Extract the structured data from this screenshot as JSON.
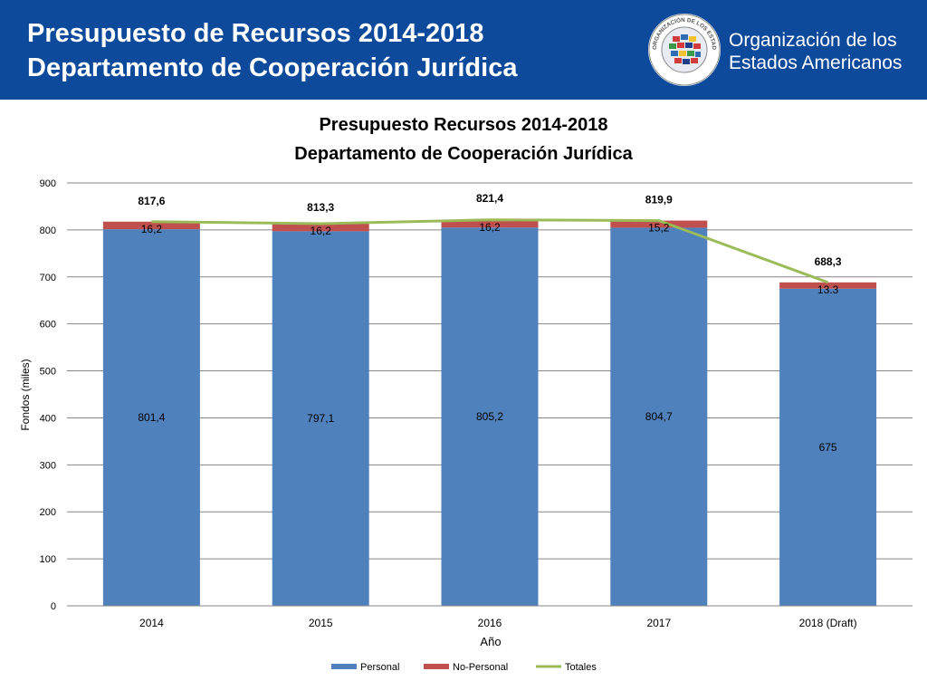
{
  "header": {
    "title_line1": "Presupuesto de Recursos 2014-2018",
    "title_line2": "Departamento de Cooperación Jurídica",
    "org_line1": "Organización de los",
    "org_line2": "Estados Americanos",
    "seal_text": "ORGANIZACIÓN DE LOS ESTADOS AMERICANOS"
  },
  "colors": {
    "header_bg": "#0d4a9c",
    "personal": "#4f81bd",
    "no_personal": "#c0504d",
    "totales": "#9bbb59"
  },
  "chart_data": {
    "type": "bar",
    "stacked": true,
    "title_line1": "Presupuesto Recursos 2014-2018",
    "title_line2": "Departamento de Cooperación Jurídica",
    "xlabel": "Año",
    "ylabel": "Fondos (miles)",
    "ylim": [
      0,
      900
    ],
    "yticks": [
      "0",
      "100",
      "200",
      "300",
      "400",
      "500",
      "600",
      "700",
      "800",
      "900"
    ],
    "grid": true,
    "legend_position": "bottom",
    "categories": [
      "2014",
      "2015",
      "2016",
      "2017",
      "2018 (Draft)"
    ],
    "series": [
      {
        "name": "Personal",
        "type": "bar",
        "values": [
          801.4,
          797.1,
          805.2,
          804.7,
          675
        ],
        "labels": [
          "801,4",
          "797,1",
          "805,2",
          "804,7",
          "675"
        ]
      },
      {
        "name": "No-Personal",
        "type": "bar",
        "values": [
          16.2,
          16.2,
          16.2,
          15.2,
          13.3
        ],
        "labels": [
          "16,2",
          "16,2",
          "16,2",
          "15,2",
          "13.3"
        ]
      },
      {
        "name": "Totales",
        "type": "line",
        "values": [
          817.6,
          813.3,
          821.4,
          819.9,
          688.3
        ],
        "labels": [
          "817,6",
          "813,3",
          "821,4",
          "819,9",
          "688,3"
        ]
      }
    ]
  }
}
